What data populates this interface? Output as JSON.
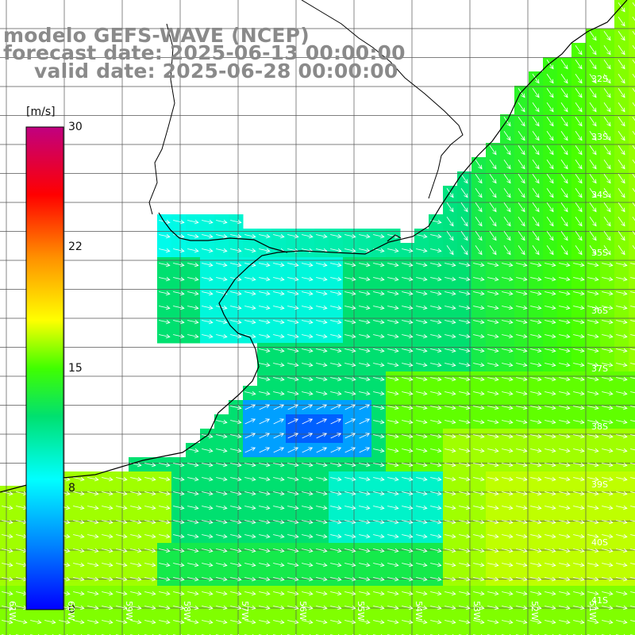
{
  "title": {
    "line1": "modelo GEFS-WAVE (NCEP)",
    "line2": "forecast date: 2025-06-13 00:00:00",
    "line3": "valid date: 2025-06-28 00:00:00"
  },
  "colorbar": {
    "unit": "[m/s]",
    "ticks": [
      "30",
      "22",
      "15",
      "8",
      "0"
    ],
    "min": 0,
    "max": 30
  },
  "lat_labels": [
    "32S",
    "33S",
    "34S",
    "35S",
    "36S",
    "37S",
    "38S",
    "39S",
    "40S",
    "41S"
  ],
  "lon_labels": [
    "61W",
    "60W",
    "59W",
    "58W",
    "57W",
    "56W",
    "55W",
    "54W",
    "53W",
    "52W",
    "51W"
  ],
  "colors": {
    "land": "#ffffff",
    "grid": "#555555",
    "coast": "#000000",
    "arrow": "#ffffff",
    "title": "#8a8a8a"
  }
}
